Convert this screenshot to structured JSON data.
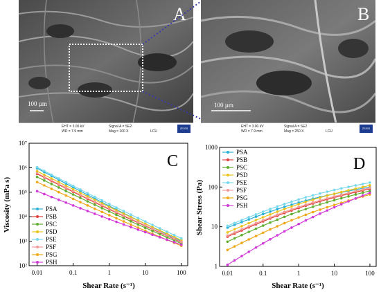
{
  "panels": {
    "A": {
      "letter": "A",
      "scale_text": "100 µm",
      "info": {
        "eht": "EHT = 3.00 kV",
        "wd": "WD = 7.9 mm",
        "signal": "Signal A = SE2",
        "mag": "Mag = 100 X",
        "lab": "LCU"
      },
      "logo": "ZEISS"
    },
    "B": {
      "letter": "B",
      "scale_text": "100 µm",
      "info": {
        "eht": "EHT = 3.00 kV",
        "wd": "WD = 7.9 mm",
        "signal": "Signal A = SE2",
        "mag": "Mag = 250 X",
        "lab": "LCU"
      },
      "logo": "ZEISS"
    }
  },
  "colors": {
    "PSA": "#2ab0d4",
    "PSB": "#e0403a",
    "PSC": "#5fae2f",
    "PSD": "#e9c319",
    "PSE": "#78d8ec",
    "PSF": "#f19a98",
    "PSG": "#f0a818",
    "PSH": "#d23ad8"
  },
  "chart_data": [
    {
      "panel": "C",
      "type": "line",
      "xlabel": "Shear Rate (s⁻¹)",
      "ylabel": "Viscosity (mPa s)",
      "xscale": "log",
      "yscale": "log",
      "xlim": [
        0.006,
        150
      ],
      "ylim": [
        100,
        10000000
      ],
      "x_ticks": [
        "0.01",
        "0.1",
        "1",
        "10",
        "100"
      ],
      "y_ticks": [
        "10²",
        "10³",
        "10⁴",
        "10⁵",
        "10⁶",
        "10⁷"
      ],
      "legend_position": "bottom-left",
      "x": [
        0.01,
        0.0158,
        0.0251,
        0.0398,
        0.0631,
        0.1,
        0.158,
        0.251,
        0.398,
        0.631,
        1,
        1.58,
        2.51,
        3.98,
        6.31,
        10,
        15.8,
        25.1,
        39.8,
        63.1,
        100
      ],
      "series": [
        {
          "name": "PSA",
          "endpoints": [
            950000,
            1000
          ]
        },
        {
          "name": "PSB",
          "endpoints": [
            560000,
            900
          ]
        },
        {
          "name": "PSC",
          "endpoints": [
            420000,
            800
          ]
        },
        {
          "name": "PSD",
          "endpoints": [
            720000,
            1100
          ]
        },
        {
          "name": "PSE",
          "endpoints": [
            1050000,
            1300
          ]
        },
        {
          "name": "PSF",
          "endpoints": [
            600000,
            950
          ]
        },
        {
          "name": "PSG",
          "endpoints": [
            260000,
            650
          ]
        },
        {
          "name": "PSH",
          "endpoints": [
            110000,
            720
          ]
        }
      ]
    },
    {
      "panel": "D",
      "type": "line",
      "xlabel": "Shear Rate (s⁻¹)",
      "ylabel": "Shear Stress (Pa)",
      "xscale": "log",
      "yscale": "log",
      "xlim": [
        0.006,
        150
      ],
      "ylim": [
        1,
        1000
      ],
      "x_ticks": [
        "0.01",
        "0.1",
        "1",
        "10",
        "100"
      ],
      "y_ticks": [
        "1",
        "10",
        "100",
        "1000"
      ],
      "legend_position": "top-left",
      "x": [
        0.01,
        0.0158,
        0.0251,
        0.0398,
        0.0631,
        0.1,
        0.158,
        0.251,
        0.398,
        0.631,
        1,
        1.58,
        2.51,
        3.98,
        6.31,
        10,
        15.8,
        25.1,
        39.8,
        63.1,
        100
      ],
      "series": [
        {
          "name": "PSA",
          "endpoints": [
            9.5,
            100
          ]
        },
        {
          "name": "PSB",
          "endpoints": [
            5.6,
            90
          ]
        },
        {
          "name": "PSC",
          "endpoints": [
            4.2,
            80
          ]
        },
        {
          "name": "PSD",
          "endpoints": [
            7.2,
            110
          ]
        },
        {
          "name": "PSE",
          "endpoints": [
            10.5,
            130
          ]
        },
        {
          "name": "PSF",
          "endpoints": [
            6.0,
            95
          ]
        },
        {
          "name": "PSG",
          "endpoints": [
            2.6,
            65
          ]
        },
        {
          "name": "PSH",
          "endpoints": [
            1.1,
            72
          ]
        }
      ]
    }
  ],
  "panel_letters": {
    "C": "C",
    "D": "D"
  }
}
